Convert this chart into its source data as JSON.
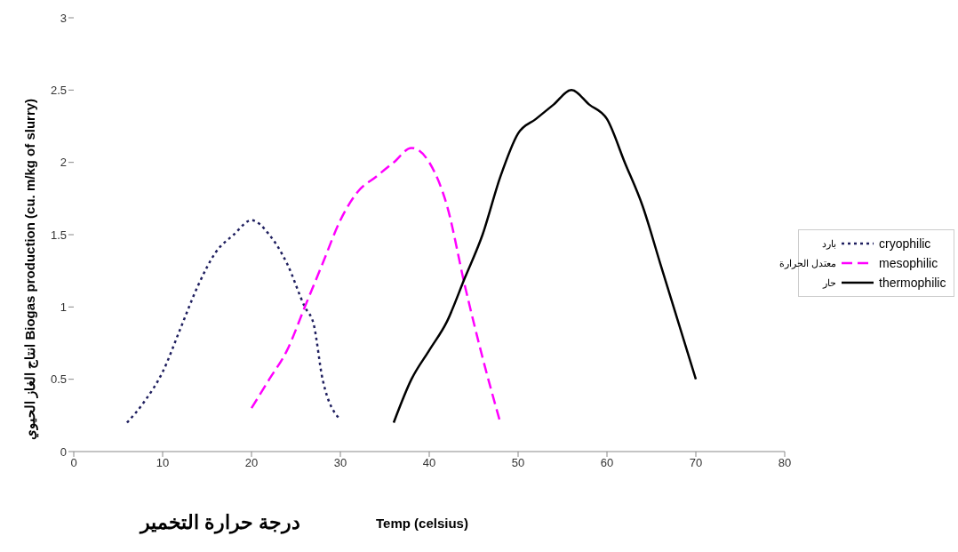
{
  "chart_data": {
    "type": "line",
    "xlabel": "Temp (celsius)",
    "ylabel": "Biogas production (cu. m/kg of slurry)",
    "xlim": [
      0,
      80
    ],
    "xticks": [
      0,
      10,
      20,
      30,
      40,
      50,
      60,
      70,
      80
    ],
    "ylim": [
      0,
      3
    ],
    "yticks": [
      0,
      0.5,
      1,
      1.5,
      2,
      2.5,
      3
    ],
    "grid": false,
    "legend": "right",
    "marker": "none",
    "annotations": [
      "بارد",
      "معتدل الحرارة",
      "حار",
      "درجة حرارة التخمير",
      "انتاج الغاز الحيوي"
    ],
    "series": [
      {
        "name": "cryophilic",
        "color": "#1f1f5f",
        "line_style": "dotted",
        "x": [
          6,
          8,
          10,
          12,
          14,
          16,
          18,
          20,
          22,
          24,
          26,
          27,
          28,
          30
        ],
        "values": [
          0.2,
          0.35,
          0.55,
          0.85,
          1.15,
          1.38,
          1.5,
          1.6,
          1.5,
          1.3,
          1.0,
          0.88,
          0.5,
          0.22
        ]
      },
      {
        "name": "mesophilic",
        "color": "#ff00ff",
        "line_style": "dashed",
        "x": [
          20,
          22,
          24,
          26,
          28,
          30,
          32,
          34,
          36,
          38,
          40,
          42,
          44,
          46,
          48
        ],
        "values": [
          0.3,
          0.5,
          0.7,
          1.0,
          1.3,
          1.6,
          1.8,
          1.9,
          2.0,
          2.1,
          2.0,
          1.7,
          1.15,
          0.65,
          0.2
        ]
      },
      {
        "name": "thermophilic",
        "color": "#000000",
        "line_style": "solid",
        "x": [
          36,
          38,
          40,
          42,
          44,
          46,
          48,
          50,
          52,
          54,
          56,
          58,
          60,
          62,
          64,
          66,
          68,
          70
        ],
        "values": [
          0.2,
          0.5,
          0.7,
          0.9,
          1.2,
          1.5,
          1.9,
          2.2,
          2.3,
          2.4,
          2.5,
          2.4,
          2.3,
          2.0,
          1.7,
          1.3,
          0.9,
          0.5
        ]
      }
    ]
  }
}
